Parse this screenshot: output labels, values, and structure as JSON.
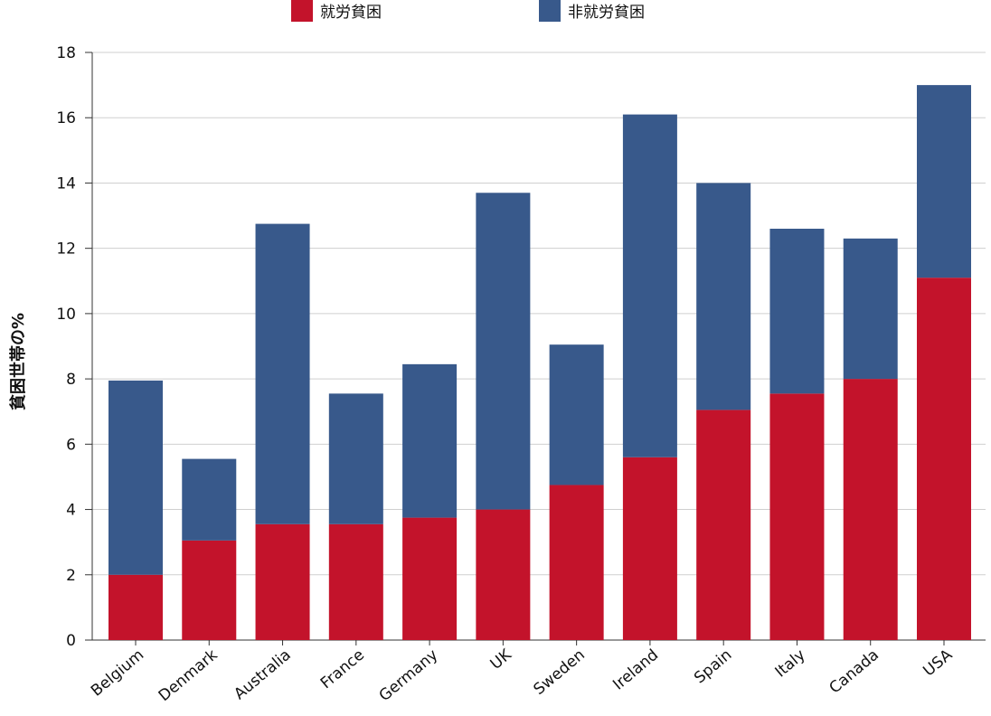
{
  "chart_data": {
    "type": "bar",
    "stacked": true,
    "ylabel": "貧困世帯の%",
    "xlabel": "",
    "ylim": [
      0,
      18
    ],
    "yticks": [
      0,
      2,
      4,
      6,
      8,
      10,
      12,
      14,
      16,
      18
    ],
    "grid": true,
    "legend_position": "top",
    "categories": [
      "Belgium",
      "Denmark",
      "Australia",
      "France",
      "Germany",
      "UK",
      "Sweden",
      "Ireland",
      "Spain",
      "Italy",
      "Canada",
      "USA"
    ],
    "series": [
      {
        "name": "就労貧困",
        "color": "#c3132b",
        "values": [
          2.0,
          3.05,
          3.55,
          3.55,
          3.75,
          4.0,
          4.75,
          5.6,
          7.05,
          7.55,
          8.0,
          11.1
        ]
      },
      {
        "name": "非就労貧困",
        "color": "#38598b",
        "values": [
          5.95,
          2.5,
          9.2,
          4.0,
          4.7,
          9.7,
          4.3,
          10.5,
          6.95,
          5.05,
          4.3,
          5.9
        ]
      }
    ]
  }
}
